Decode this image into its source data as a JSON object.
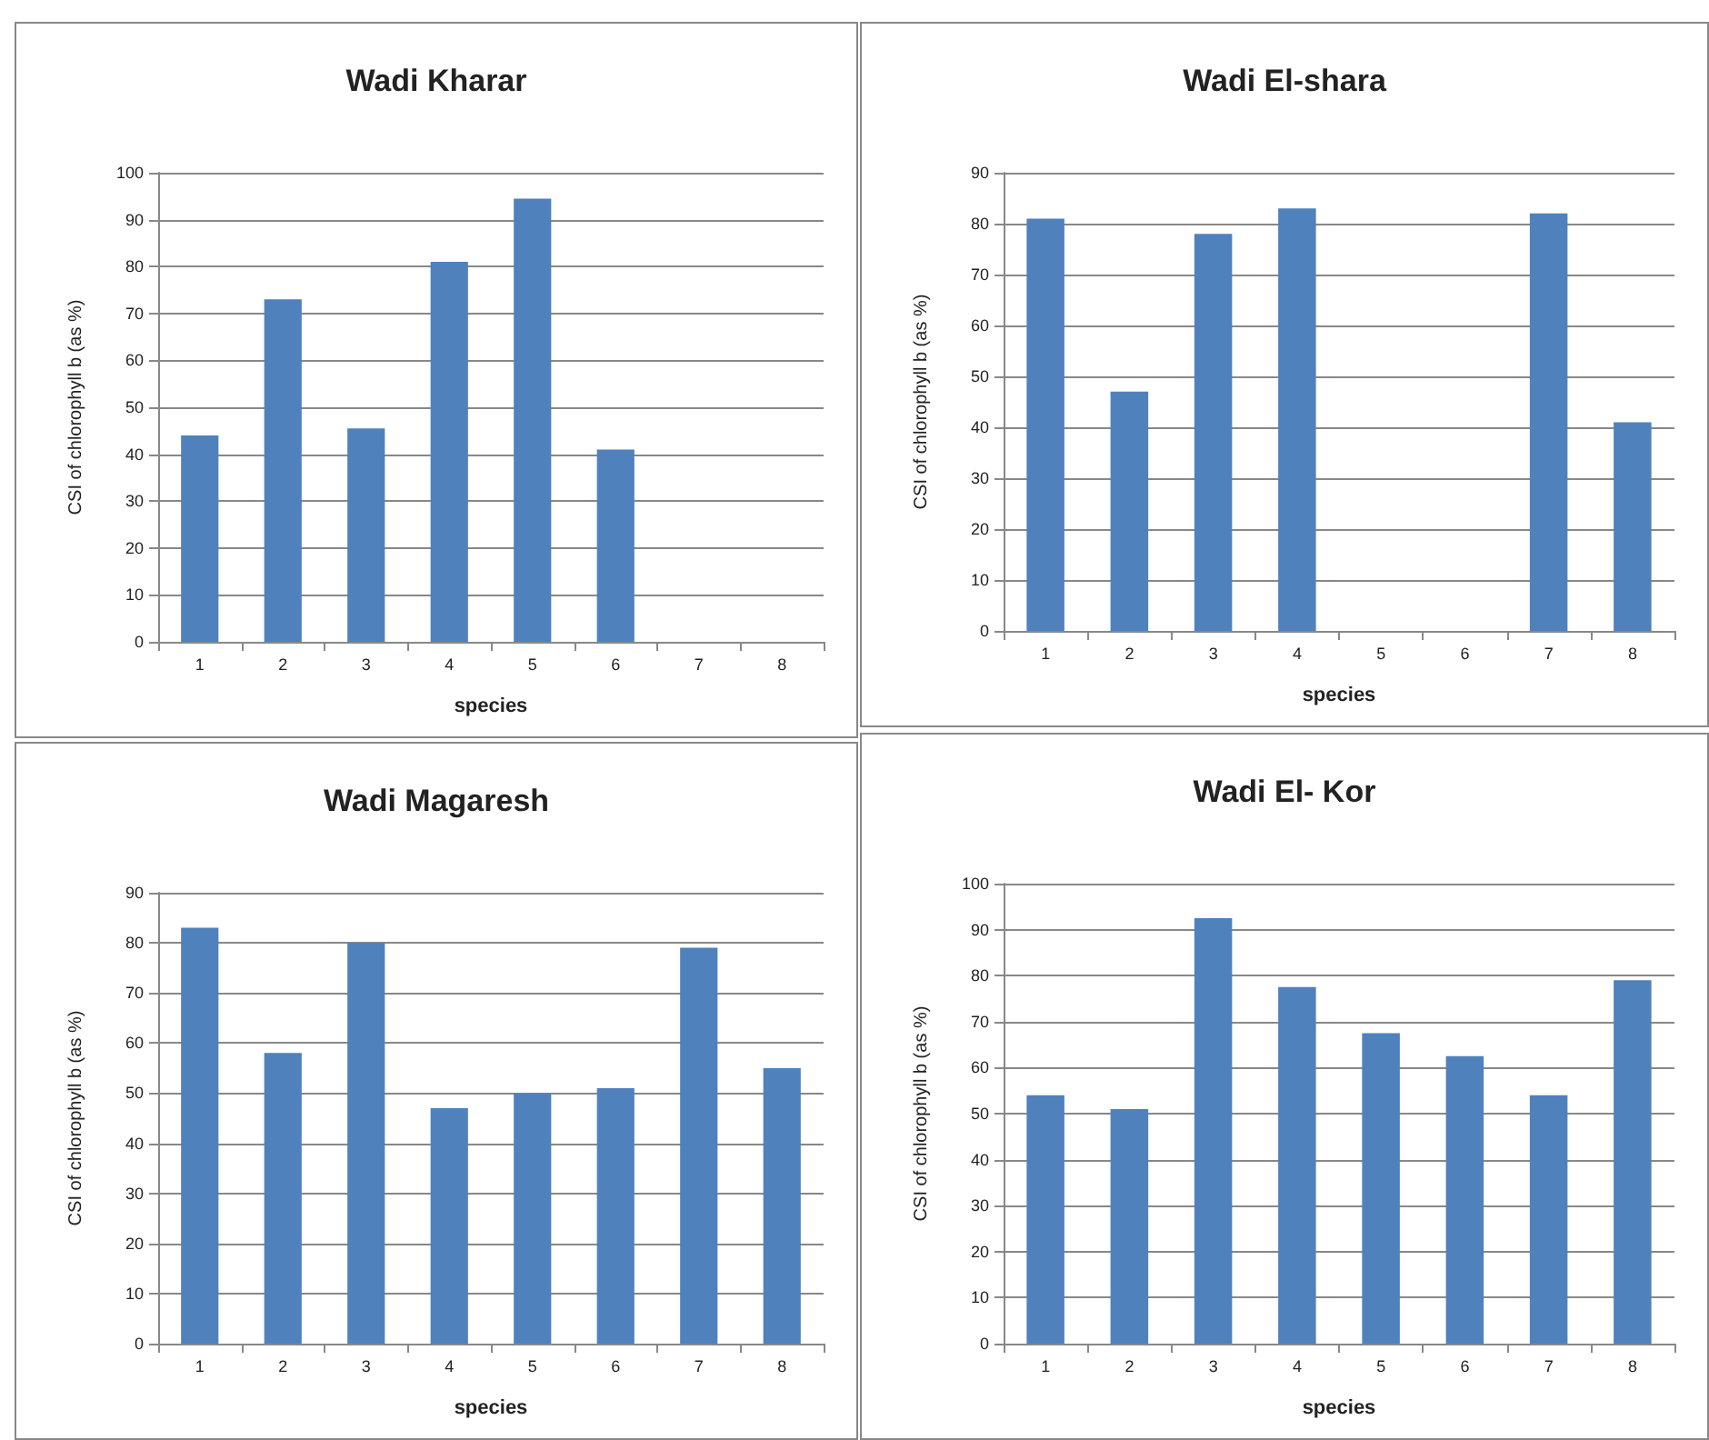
{
  "chart_data": [
    {
      "type": "bar",
      "title": "Wadi Kharar",
      "xlabel": "species",
      "ylabel": "CSI of chlorophyll b (as %)",
      "categories": [
        "1",
        "2",
        "3",
        "4",
        "5",
        "6",
        "7",
        "8"
      ],
      "values": [
        44,
        73,
        45.5,
        81,
        94.5,
        41,
        null,
        null
      ],
      "color": "#4f81bd",
      "ylim": [
        0,
        100
      ],
      "yticks": [
        0,
        10,
        20,
        30,
        40,
        50,
        60,
        70,
        80,
        90,
        100
      ],
      "grid": "y"
    },
    {
      "type": "bar",
      "title": "Wadi El-shara",
      "xlabel": "species",
      "ylabel": "CSI of chlorophyll b (as %)",
      "categories": [
        "1",
        "2",
        "3",
        "4",
        "5",
        "6",
        "7",
        "8"
      ],
      "values": [
        81,
        47,
        78,
        83,
        null,
        null,
        82,
        41
      ],
      "color": "#4f81bd",
      "ylim": [
        0,
        90
      ],
      "yticks": [
        0,
        10,
        20,
        30,
        40,
        50,
        60,
        70,
        80,
        90
      ],
      "grid": "y"
    },
    {
      "type": "bar",
      "title": "Wadi Magaresh",
      "xlabel": "species",
      "ylabel": "CSI of chlorophyll b (as %)",
      "categories": [
        "1",
        "2",
        "3",
        "4",
        "5",
        "6",
        "7",
        "8"
      ],
      "values": [
        83,
        58,
        80,
        47,
        50,
        51,
        79,
        55
      ],
      "color": "#4f81bd",
      "ylim": [
        0,
        90
      ],
      "yticks": [
        0,
        10,
        20,
        30,
        40,
        50,
        60,
        70,
        80,
        90
      ],
      "grid": "y"
    },
    {
      "type": "bar",
      "title": "Wadi El- Kor",
      "xlabel": "species",
      "ylabel": "CSI of chlorophyll b (as %)",
      "categories": [
        "1",
        "2",
        "3",
        "4",
        "5",
        "6",
        "7",
        "8"
      ],
      "values": [
        54,
        51,
        92.5,
        77.5,
        67.5,
        62.5,
        54,
        79
      ],
      "color": "#4f81bd",
      "ylim": [
        0,
        100
      ],
      "yticks": [
        0,
        10,
        20,
        30,
        40,
        50,
        60,
        70,
        80,
        90,
        100
      ],
      "grid": "y"
    }
  ]
}
